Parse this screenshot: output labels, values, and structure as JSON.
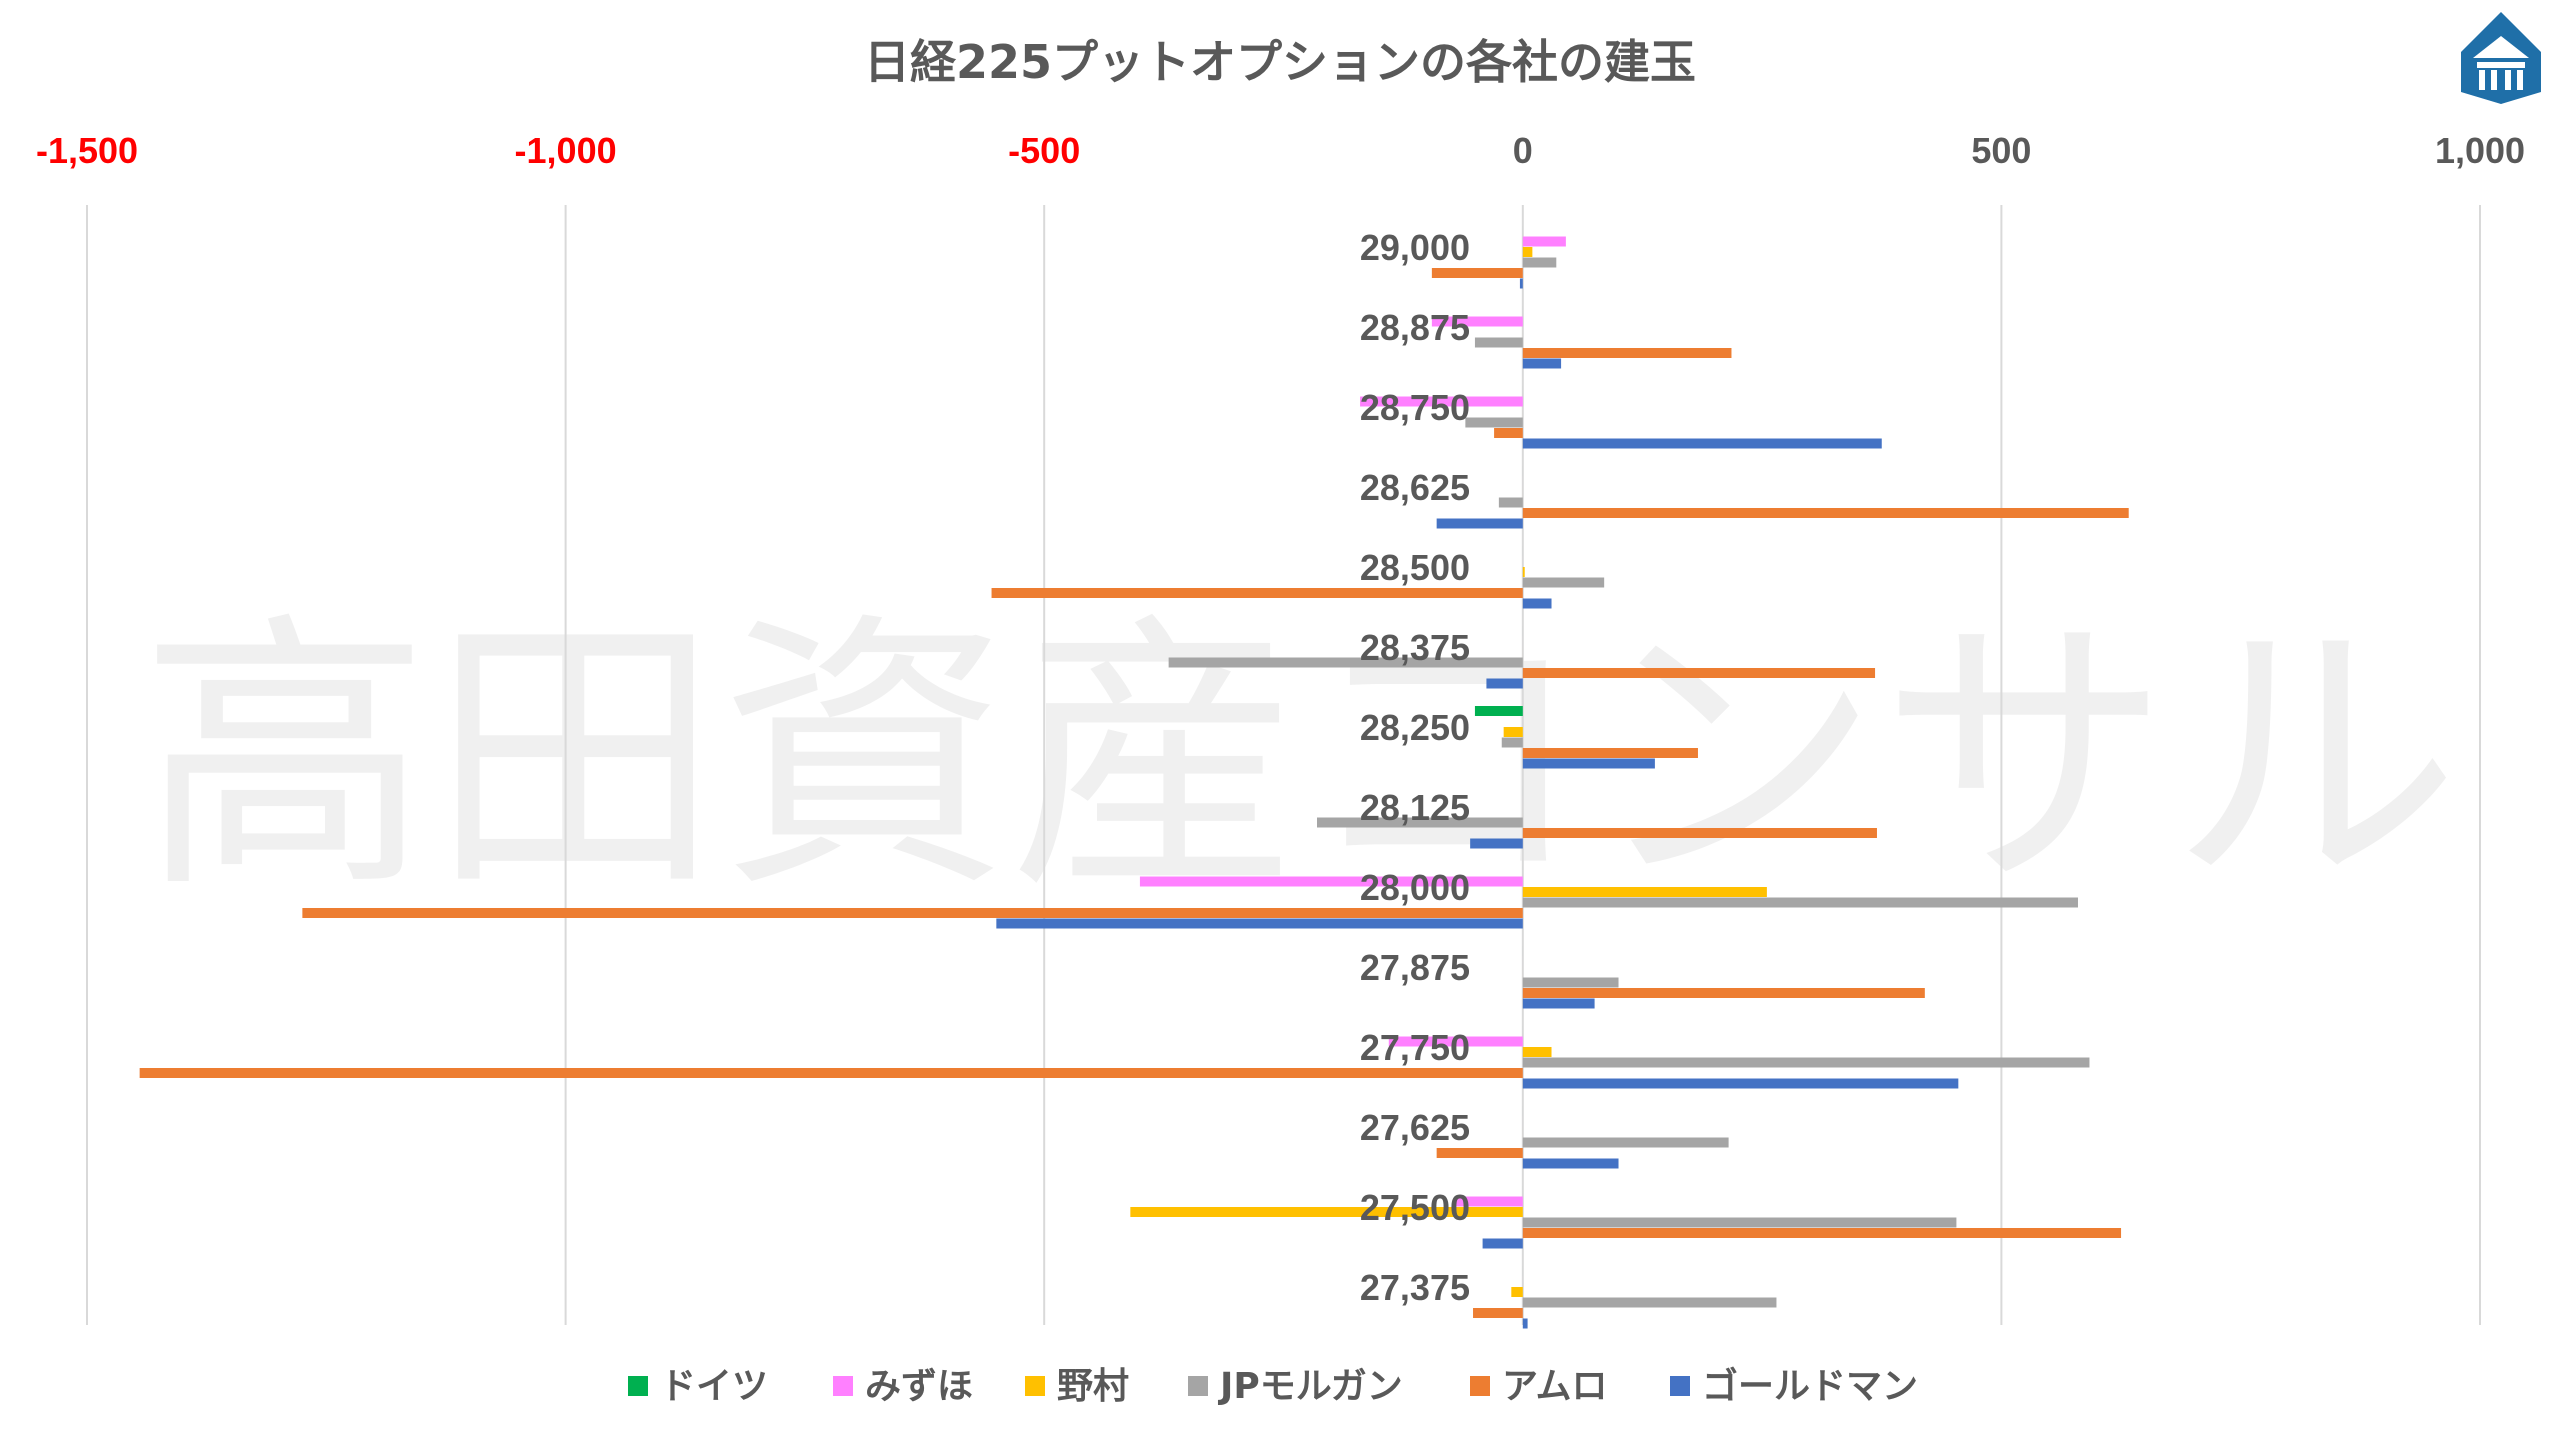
{
  "watermark": "高田資産コンサル",
  "chart_data": {
    "type": "bar",
    "orientation": "horizontal",
    "title": "日経225プットオプションの各社の建玉",
    "xlim": [
      -1500,
      1000
    ],
    "x_ticks": [
      {
        "value": -1500,
        "label": "-1,500",
        "color": "#ff0000"
      },
      {
        "value": -1000,
        "label": "-1,000",
        "color": "#ff0000"
      },
      {
        "value": -500,
        "label": "-500",
        "color": "#ff0000"
      },
      {
        "value": 0,
        "label": "0",
        "color": "#595959"
      },
      {
        "value": 500,
        "label": "500",
        "color": "#595959"
      },
      {
        "value": 1000,
        "label": "1,000",
        "color": "#595959"
      }
    ],
    "grid": true,
    "legend_position": "bottom",
    "categories": [
      "29,000",
      "28,875",
      "28,750",
      "28,625",
      "28,500",
      "28,375",
      "28,250",
      "28,125",
      "28,000",
      "27,875",
      "27,750",
      "27,625",
      "27,500",
      "27,375"
    ],
    "series": [
      {
        "name": "ドイツ",
        "color": "#00b050",
        "values": [
          0,
          0,
          0,
          0,
          0,
          0,
          -50,
          0,
          0,
          0,
          0,
          0,
          0,
          0
        ]
      },
      {
        "name": "みずほ",
        "color": "#ff80ff",
        "values": [
          45,
          -95,
          -170,
          0,
          0,
          0,
          0,
          0,
          -400,
          0,
          -140,
          0,
          -70,
          0
        ]
      },
      {
        "name": "野村",
        "color": "#ffc000",
        "values": [
          10,
          0,
          0,
          0,
          2,
          0,
          -20,
          0,
          255,
          0,
          30,
          0,
          -410,
          -12
        ]
      },
      {
        "name": "JPモルガン",
        "color": "#a5a5a5",
        "values": [
          35,
          -50,
          -60,
          -25,
          85,
          -370,
          -22,
          -215,
          580,
          100,
          592,
          215,
          453,
          265
        ]
      },
      {
        "name": "アムロ",
        "color": "#ed7d31",
        "values": [
          -95,
          218,
          -30,
          633,
          -555,
          368,
          183,
          370,
          -1275,
          420,
          -1445,
          -90,
          625,
          -52
        ]
      },
      {
        "name": "ゴールドマン",
        "color": "#4472c4",
        "values": [
          -3,
          40,
          375,
          -90,
          30,
          -38,
          138,
          -55,
          -550,
          75,
          455,
          100,
          -42,
          5
        ]
      }
    ]
  }
}
